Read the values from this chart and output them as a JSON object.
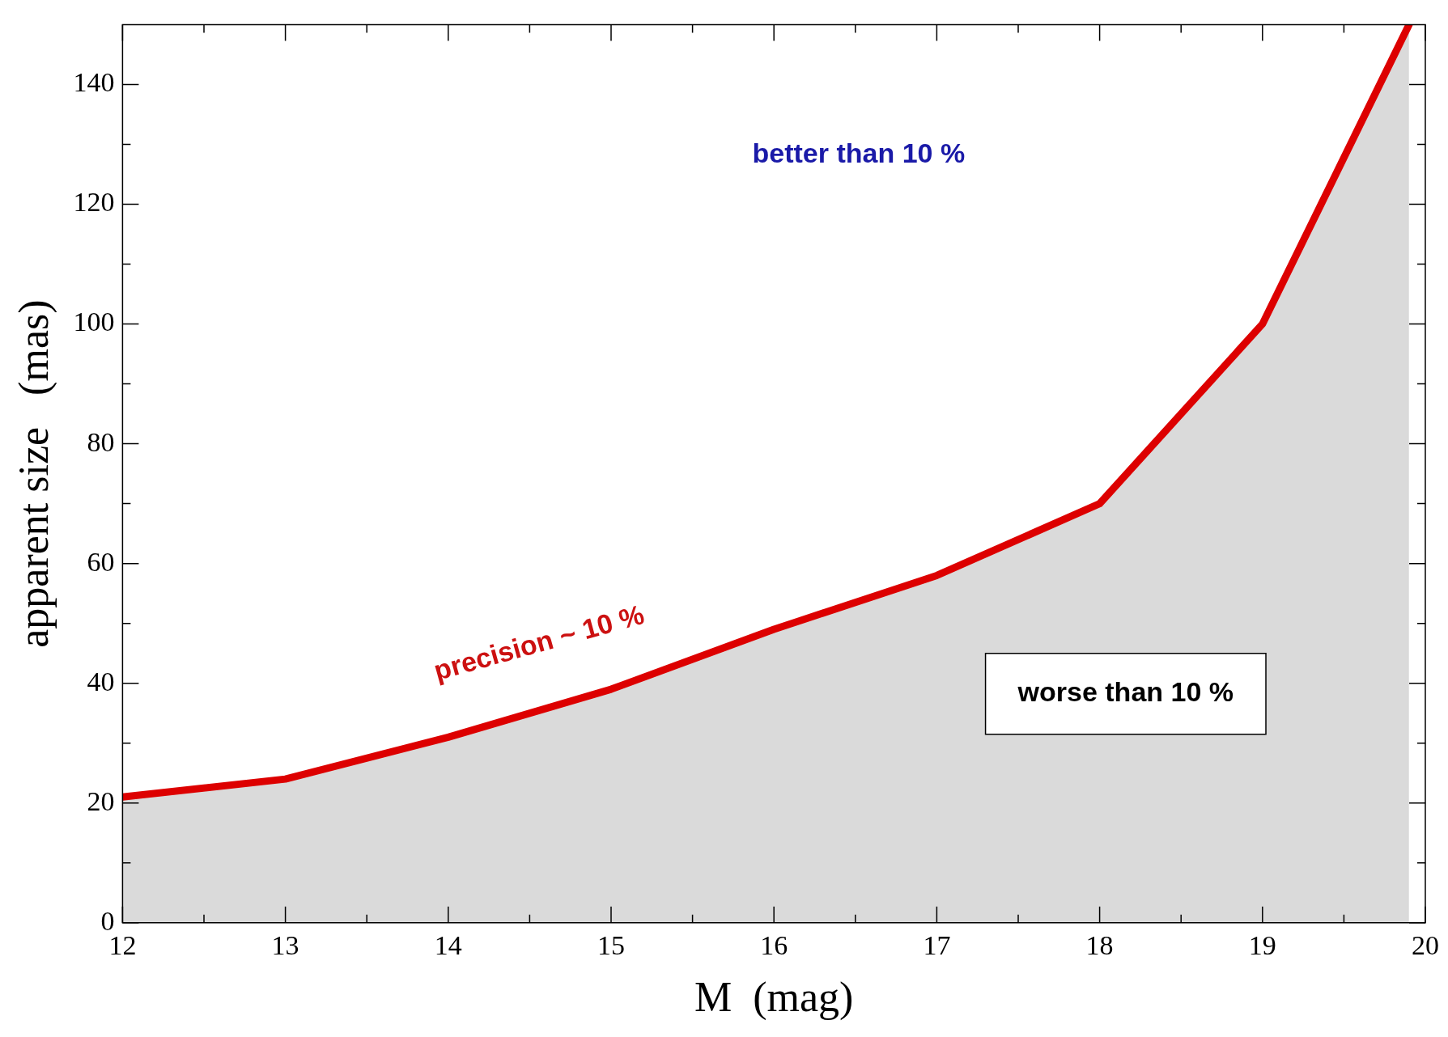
{
  "chart_data": {
    "type": "area",
    "xlabel": "M  (mag)",
    "ylabel": "apparent size   (mas)",
    "x": [
      12,
      13,
      14,
      15,
      16,
      17,
      18,
      19,
      19.9
    ],
    "series": [
      {
        "color": "#dd0000",
        "values": [
          21,
          24,
          31,
          39,
          49,
          58,
          70,
          100,
          150
        ]
      }
    ],
    "xlim": [
      12,
      20
    ],
    "ylim": [
      0,
      150
    ],
    "xticks": [
      12,
      {
        "value": 12.5,
        "label": null
      },
      13,
      {
        "value": 13.5,
        "label": null
      },
      14,
      {
        "value": 14.5,
        "label": null
      },
      15,
      {
        "value": 15.5,
        "label": null
      },
      16,
      {
        "value": 16.5,
        "label": null
      },
      17,
      {
        "value": 17.5,
        "label": null
      },
      18,
      {
        "value": 18.5,
        "label": null
      },
      19,
      {
        "value": 19.5,
        "label": null
      },
      20
    ],
    "yticks": [
      0,
      {
        "value": 10,
        "label": null
      },
      20,
      {
        "value": 30,
        "label": null
      },
      40,
      {
        "value": 50,
        "label": null
      },
      60,
      {
        "value": 70,
        "label": null
      },
      80,
      {
        "value": 90,
        "label": null
      },
      100,
      {
        "value": 110,
        "label": null
      },
      120,
      {
        "value": 130,
        "label": null
      },
      140
    ],
    "annotations": [
      "better than 10 %",
      "precision ~ 10 %",
      "worse than 10 %"
    ],
    "grid": false,
    "legend": false,
    "marker": "none",
    "line_style": "solid"
  }
}
